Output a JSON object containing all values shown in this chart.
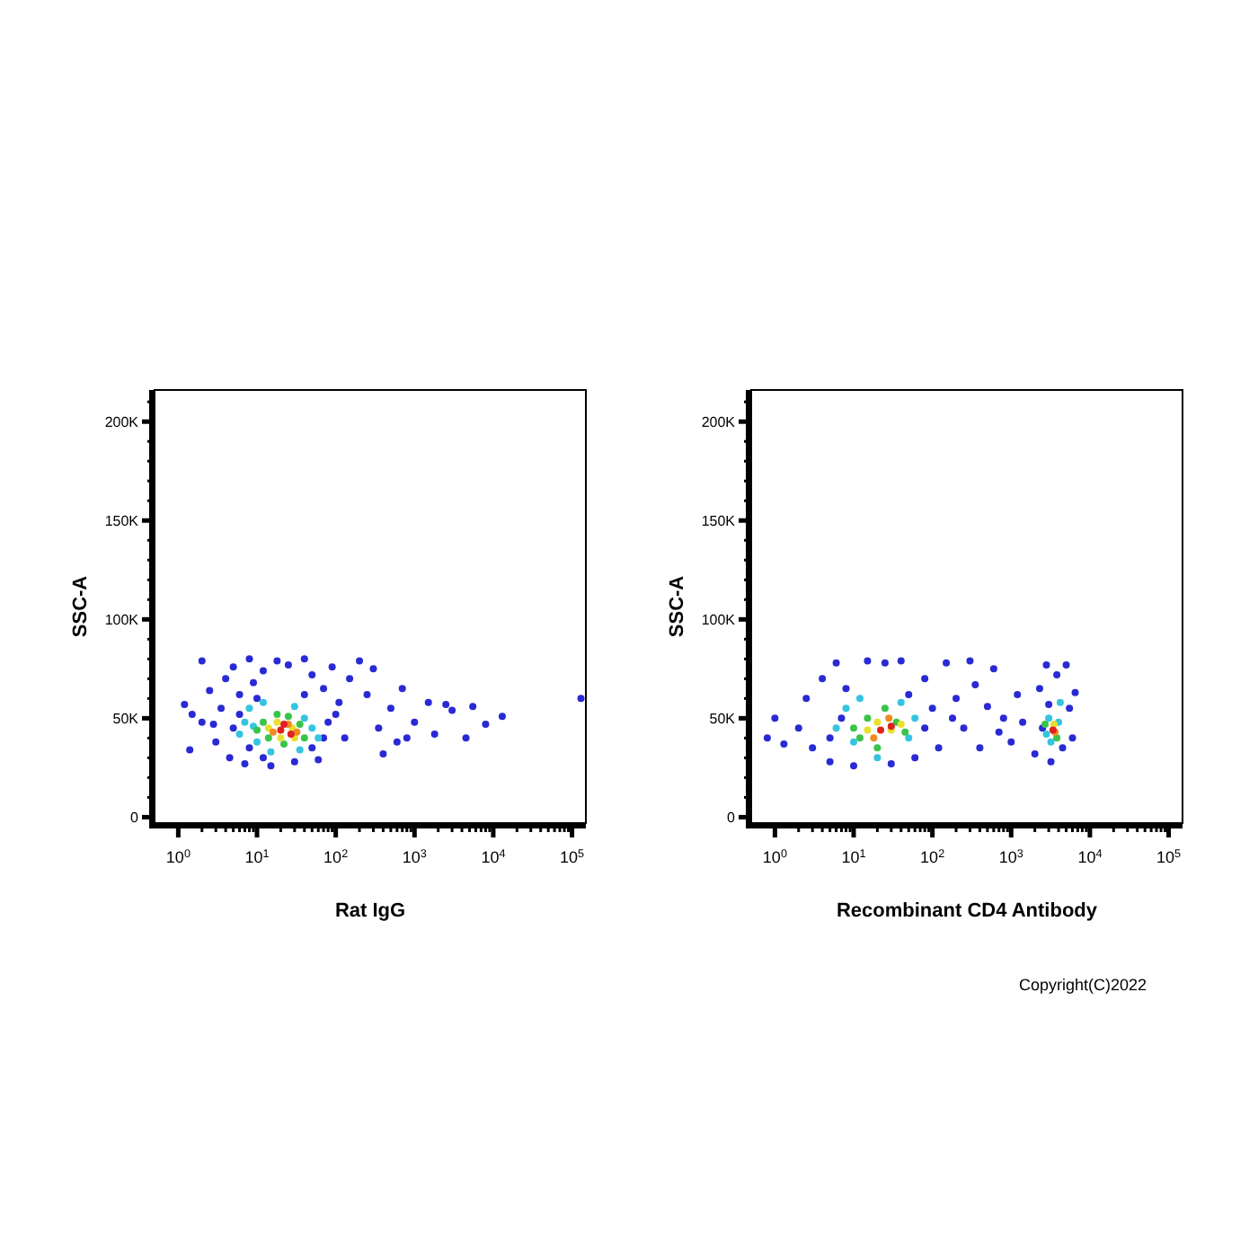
{
  "chart_data": [
    {
      "type": "scatter",
      "xlabel": "Rat IgG",
      "ylabel": "SSC-A",
      "log": "x",
      "marker": "circle",
      "xlim": [
        0.5,
        150000
      ],
      "ylim": [
        -3000,
        216000
      ],
      "xticks": [
        {
          "value": 1,
          "label": "10$^{0}$"
        },
        {
          "value": 2,
          "label": null
        },
        {
          "value": 3,
          "label": null
        },
        {
          "value": 4,
          "label": null
        },
        {
          "value": 5,
          "label": null
        },
        {
          "value": 6,
          "label": null
        },
        {
          "value": 7,
          "label": null
        },
        {
          "value": 8,
          "label": null
        },
        {
          "value": 9,
          "label": null
        },
        {
          "value": 10,
          "label": "10$^{1}$"
        },
        {
          "value": 20,
          "label": null
        },
        {
          "value": 30,
          "label": null
        },
        {
          "value": 40,
          "label": null
        },
        {
          "value": 50,
          "label": null
        },
        {
          "value": 60,
          "label": null
        },
        {
          "value": 70,
          "label": null
        },
        {
          "value": 80,
          "label": null
        },
        {
          "value": 90,
          "label": null
        },
        {
          "value": 100,
          "label": "10$^{2}$"
        },
        {
          "value": 200,
          "label": null
        },
        {
          "value": 300,
          "label": null
        },
        {
          "value": 400,
          "label": null
        },
        {
          "value": 500,
          "label": null
        },
        {
          "value": 600,
          "label": null
        },
        {
          "value": 700,
          "label": null
        },
        {
          "value": 800,
          "label": null
        },
        {
          "value": 900,
          "label": null
        },
        {
          "value": 1000,
          "label": "10$^{3}$"
        },
        {
          "value": 2000,
          "label": null
        },
        {
          "value": 3000,
          "label": null
        },
        {
          "value": 4000,
          "label": null
        },
        {
          "value": 5000,
          "label": null
        },
        {
          "value": 6000,
          "label": null
        },
        {
          "value": 7000,
          "label": null
        },
        {
          "value": 8000,
          "label": null
        },
        {
          "value": 9000,
          "label": null
        },
        {
          "value": 10000,
          "label": "10$^{4}$"
        },
        {
          "value": 20000,
          "label": null
        },
        {
          "value": 30000,
          "label": null
        },
        {
          "value": 40000,
          "label": null
        },
        {
          "value": 50000,
          "label": null
        },
        {
          "value": 60000,
          "label": null
        },
        {
          "value": 70000,
          "label": null
        },
        {
          "value": 80000,
          "label": null
        },
        {
          "value": 90000,
          "label": null
        },
        {
          "value": 100000,
          "label": "10$^{5}$"
        }
      ],
      "yticks": [
        {
          "value": 0,
          "label": "0"
        },
        {
          "value": 10000,
          "label": null
        },
        {
          "value": 20000,
          "label": null
        },
        {
          "value": 30000,
          "label": null
        },
        {
          "value": 40000,
          "label": null
        },
        {
          "value": 50000,
          "label": "50K"
        },
        {
          "value": 60000,
          "label": null
        },
        {
          "value": 70000,
          "label": null
        },
        {
          "value": 80000,
          "label": null
        },
        {
          "value": 90000,
          "label": null
        },
        {
          "value": 100000,
          "label": "100K"
        },
        {
          "value": 110000,
          "label": null
        },
        {
          "value": 120000,
          "label": null
        },
        {
          "value": 130000,
          "label": null
        },
        {
          "value": 140000,
          "label": null
        },
        {
          "value": 150000,
          "label": "150K"
        },
        {
          "value": 160000,
          "label": null
        },
        {
          "value": 170000,
          "label": null
        },
        {
          "value": 180000,
          "label": null
        },
        {
          "value": 190000,
          "label": null
        },
        {
          "value": 200000,
          "label": "200K"
        },
        {
          "value": 210000,
          "label": null
        }
      ],
      "series": [
        {
          "color": "#2a2ad4",
          "x": [
            1.2,
            1.4,
            2,
            2.5,
            2.8,
            3,
            3.5,
            4,
            4.5,
            5,
            6,
            7,
            8,
            9,
            12,
            15,
            18,
            25,
            30,
            40,
            50,
            60,
            70,
            90,
            110,
            130,
            150,
            200,
            250,
            300,
            350,
            400,
            500,
            600,
            800,
            1000,
            1500,
            1800,
            2500,
            3000,
            4500,
            5500,
            8000,
            13000,
            130000,
            700,
            2,
            1.5,
            5,
            6,
            8,
            10,
            12,
            40,
            50,
            80,
            100,
            70
          ],
          "values": [
            57000,
            34000,
            79000,
            64000,
            47000,
            38000,
            55000,
            70000,
            30000,
            76000,
            62000,
            27000,
            80000,
            68000,
            74000,
            26000,
            79000,
            77000,
            28000,
            80000,
            72000,
            29000,
            65000,
            76000,
            58000,
            40000,
            70000,
            79000,
            62000,
            75000,
            45000,
            32000,
            55000,
            38000,
            40000,
            48000,
            58000,
            42000,
            57000,
            54000,
            40000,
            56000,
            47000,
            51000,
            60000,
            65000,
            48000,
            52000,
            45000,
            52000,
            35000,
            60000,
            30000,
            62000,
            35000,
            48000,
            52000,
            40000
          ]
        },
        {
          "color": "#35c4e0",
          "x": [
            6,
            7,
            8,
            10,
            12,
            15,
            30,
            40,
            50,
            60,
            35,
            9
          ],
          "values": [
            42000,
            48000,
            55000,
            38000,
            58000,
            33000,
            56000,
            50000,
            45000,
            40000,
            34000,
            46000
          ]
        },
        {
          "color": "#3bc44a",
          "x": [
            10,
            12,
            14,
            18,
            25,
            35,
            40,
            22
          ],
          "values": [
            44000,
            48000,
            40000,
            52000,
            51000,
            47000,
            40000,
            37000
          ]
        },
        {
          "color": "#e8e030",
          "x": [
            14,
            18,
            28,
            30,
            20
          ],
          "values": [
            45000,
            48000,
            45000,
            40000,
            40000
          ]
        },
        {
          "color": "#f08a20",
          "x": [
            16,
            25,
            32
          ],
          "values": [
            43000,
            47000,
            43000
          ]
        },
        {
          "color": "#e02020",
          "x": [
            20,
            27,
            22
          ],
          "values": [
            44000,
            42000,
            47000
          ]
        }
      ]
    },
    {
      "type": "scatter",
      "xlabel": "Recombinant CD4 Antibody",
      "ylabel": "SSC-A",
      "log": "x",
      "marker": "circle",
      "annotations": [
        "Copyright(C)2022"
      ],
      "xlim": [
        0.5,
        150000
      ],
      "ylim": [
        -3000,
        216000
      ],
      "xticks": [
        {
          "value": 1,
          "label": "10$^{0}$"
        },
        {
          "value": 2,
          "label": null
        },
        {
          "value": 3,
          "label": null
        },
        {
          "value": 4,
          "label": null
        },
        {
          "value": 5,
          "label": null
        },
        {
          "value": 6,
          "label": null
        },
        {
          "value": 7,
          "label": null
        },
        {
          "value": 8,
          "label": null
        },
        {
          "value": 9,
          "label": null
        },
        {
          "value": 10,
          "label": "10$^{1}$"
        },
        {
          "value": 20,
          "label": null
        },
        {
          "value": 30,
          "label": null
        },
        {
          "value": 40,
          "label": null
        },
        {
          "value": 50,
          "label": null
        },
        {
          "value": 60,
          "label": null
        },
        {
          "value": 70,
          "label": null
        },
        {
          "value": 80,
          "label": null
        },
        {
          "value": 90,
          "label": null
        },
        {
          "value": 100,
          "label": "10$^{2}$"
        },
        {
          "value": 200,
          "label": null
        },
        {
          "value": 300,
          "label": null
        },
        {
          "value": 400,
          "label": null
        },
        {
          "value": 500,
          "label": null
        },
        {
          "value": 600,
          "label": null
        },
        {
          "value": 700,
          "label": null
        },
        {
          "value": 800,
          "label": null
        },
        {
          "value": 900,
          "label": null
        },
        {
          "value": 1000,
          "label": "10$^{3}$"
        },
        {
          "value": 2000,
          "label": null
        },
        {
          "value": 3000,
          "label": null
        },
        {
          "value": 4000,
          "label": null
        },
        {
          "value": 5000,
          "label": null
        },
        {
          "value": 6000,
          "label": null
        },
        {
          "value": 7000,
          "label": null
        },
        {
          "value": 8000,
          "label": null
        },
        {
          "value": 9000,
          "label": null
        },
        {
          "value": 10000,
          "label": "10$^{4}$"
        },
        {
          "value": 20000,
          "label": null
        },
        {
          "value": 30000,
          "label": null
        },
        {
          "value": 40000,
          "label": null
        },
        {
          "value": 50000,
          "label": null
        },
        {
          "value": 60000,
          "label": null
        },
        {
          "value": 70000,
          "label": null
        },
        {
          "value": 80000,
          "label": null
        },
        {
          "value": 90000,
          "label": null
        },
        {
          "value": 100000,
          "label": "10$^{5}$"
        }
      ],
      "yticks": [
        {
          "value": 0,
          "label": "0"
        },
        {
          "value": 10000,
          "label": null
        },
        {
          "value": 20000,
          "label": null
        },
        {
          "value": 30000,
          "label": null
        },
        {
          "value": 40000,
          "label": null
        },
        {
          "value": 50000,
          "label": "50K"
        },
        {
          "value": 60000,
          "label": null
        },
        {
          "value": 70000,
          "label": null
        },
        {
          "value": 80000,
          "label": null
        },
        {
          "value": 90000,
          "label": null
        },
        {
          "value": 100000,
          "label": "100K"
        },
        {
          "value": 110000,
          "label": null
        },
        {
          "value": 120000,
          "label": null
        },
        {
          "value": 130000,
          "label": null
        },
        {
          "value": 140000,
          "label": null
        },
        {
          "value": 150000,
          "label": "150K"
        },
        {
          "value": 160000,
          "label": null
        },
        {
          "value": 170000,
          "label": null
        },
        {
          "value": 180000,
          "label": null
        },
        {
          "value": 190000,
          "label": null
        },
        {
          "value": 200000,
          "label": "200K"
        },
        {
          "value": 210000,
          "label": null
        }
      ],
      "series": [
        {
          "color": "#2a2ad4",
          "x": [
            0.8,
            1,
            1.3,
            2,
            2.5,
            3,
            4,
            5,
            6,
            8,
            10,
            15,
            25,
            30,
            40,
            60,
            80,
            100,
            120,
            150,
            200,
            250,
            300,
            350,
            400,
            500,
            600,
            700,
            800,
            1000,
            1200,
            1400,
            2000,
            2300,
            2500,
            2800,
            3200,
            3800,
            4500,
            5000,
            5500,
            6500,
            6000,
            3000,
            7,
            5,
            50,
            80,
            180
          ],
          "values": [
            40000,
            50000,
            37000,
            45000,
            60000,
            35000,
            70000,
            28000,
            78000,
            65000,
            26000,
            79000,
            78000,
            27000,
            79000,
            30000,
            70000,
            55000,
            35000,
            78000,
            60000,
            45000,
            79000,
            67000,
            35000,
            56000,
            75000,
            43000,
            50000,
            38000,
            62000,
            48000,
            32000,
            65000,
            45000,
            77000,
            28000,
            72000,
            35000,
            77000,
            55000,
            63000,
            40000,
            57000,
            50000,
            40000,
            62000,
            45000,
            50000
          ]
        },
        {
          "color": "#35c4e0",
          "x": [
            6,
            8,
            10,
            12,
            20,
            40,
            50,
            60,
            3000,
            4000,
            3200,
            2800,
            4200
          ],
          "values": [
            45000,
            55000,
            38000,
            60000,
            30000,
            58000,
            40000,
            50000,
            50000,
            48000,
            38000,
            42000,
            58000
          ]
        },
        {
          "color": "#3bc44a",
          "x": [
            10,
            12,
            15,
            25,
            35,
            45,
            20,
            2700,
            3800
          ],
          "values": [
            45000,
            40000,
            50000,
            55000,
            48000,
            43000,
            35000,
            47000,
            40000
          ]
        },
        {
          "color": "#e8e030",
          "x": [
            15,
            20,
            30,
            40,
            3500
          ],
          "values": [
            44000,
            48000,
            44000,
            47000,
            47000
          ]
        },
        {
          "color": "#f08a20",
          "x": [
            18,
            28,
            3600
          ],
          "values": [
            40000,
            50000,
            43000
          ]
        },
        {
          "color": "#e02020",
          "x": [
            22,
            30,
            3400
          ],
          "values": [
            44000,
            46000,
            44000
          ]
        }
      ]
    }
  ]
}
